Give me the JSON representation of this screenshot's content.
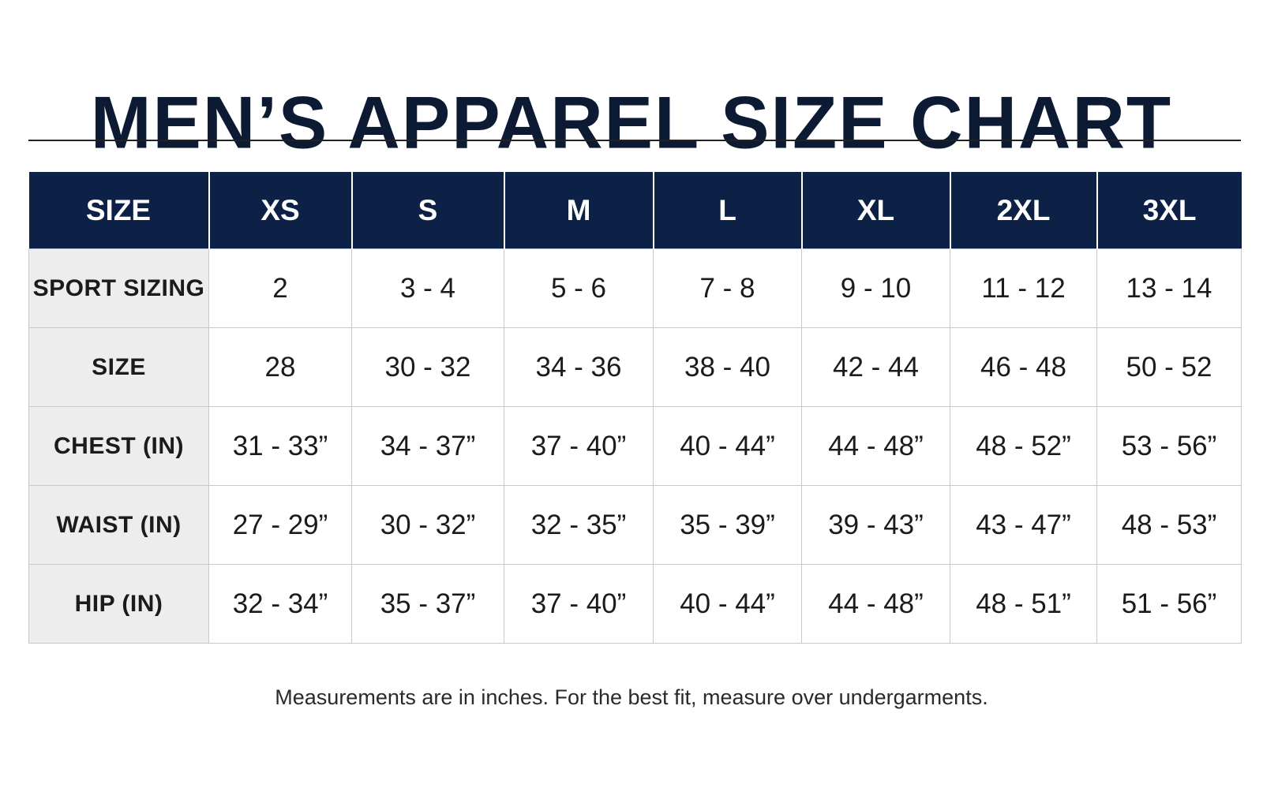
{
  "title": "MEN’S APPAREL SIZE CHART",
  "colors": {
    "header_bg": "#0d2147",
    "header_text": "#ffffff",
    "title_text": "#0c1a33",
    "label_bg": "#ededed",
    "border": "#c9c9c9"
  },
  "table": {
    "headers": [
      "SIZE",
      "XS",
      "S",
      "M",
      "L",
      "XL",
      "2XL",
      "3XL"
    ],
    "rows": [
      {
        "label": "SPORT SIZING",
        "cells": [
          "2",
          "3 - 4",
          "5 - 6",
          "7 - 8",
          "9 - 10",
          "11 - 12",
          "13 - 14"
        ]
      },
      {
        "label": "SIZE",
        "cells": [
          "28",
          "30 - 32",
          "34 - 36",
          "38 - 40",
          "42 - 44",
          "46 - 48",
          "50 - 52"
        ]
      },
      {
        "label": "CHEST (IN)",
        "cells": [
          "31 - 33”",
          "34 - 37”",
          "37 - 40”",
          "40 - 44”",
          "44 - 48”",
          "48 - 52”",
          "53 - 56”"
        ]
      },
      {
        "label": "WAIST (IN)",
        "cells": [
          "27 - 29”",
          "30 - 32”",
          "32 - 35”",
          "35 - 39”",
          "39 - 43”",
          "43 - 47”",
          "48 - 53”"
        ]
      },
      {
        "label": "HIP (IN)",
        "cells": [
          "32 - 34”",
          "35 - 37”",
          "37 - 40”",
          "40 - 44”",
          "44 - 48”",
          "48 - 51”",
          "51 - 56”"
        ]
      }
    ]
  },
  "footnote": "Measurements are in inches. For the best fit, measure over undergarments."
}
